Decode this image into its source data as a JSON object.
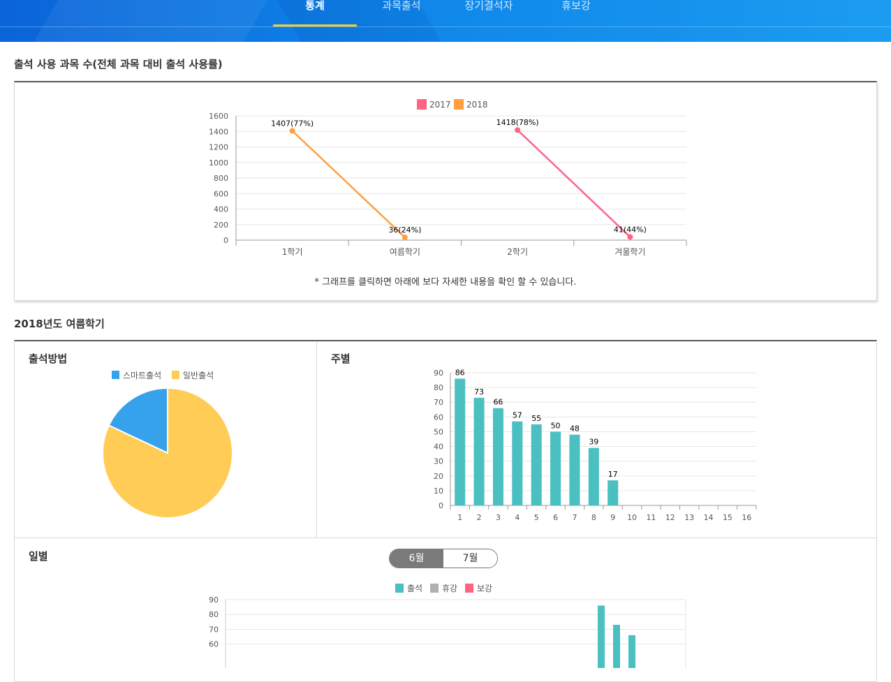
{
  "nav": {
    "tabs": [
      {
        "label": "통계",
        "active": true
      },
      {
        "label": "과목출석",
        "active": false
      },
      {
        "label": "장기결석자",
        "active": false
      },
      {
        "label": "휴보강",
        "active": false
      }
    ]
  },
  "usage": {
    "title": "출석 사용 과목 수(전체 과목 대비 출석 사용률)",
    "note": "* 그래프를 클릭하면 아래에 보다 자세한 내용을 확인 할 수 있습니다."
  },
  "summer": {
    "title": "2018년도 여름학기",
    "method_title": "출석방법",
    "weekly_title": "주별",
    "daily_title": "일별",
    "month_toggle": [
      "6월",
      "7월"
    ],
    "month_selected": "6월"
  },
  "colors": {
    "2017": "#ff6384",
    "2018": "#ff9f40",
    "smart": "#36a2eb",
    "normal": "#ffcd56",
    "attend": "#4bc0c0",
    "cancel": "#b0b0b0",
    "makeup": "#ff6384"
  },
  "chart_data": [
    {
      "type": "line",
      "categories": [
        "1학기",
        "여름학기",
        "2학기",
        "겨울학기"
      ],
      "series": [
        {
          "name": "2017",
          "color": "#ff6384",
          "points": [
            {
              "x": "2학기",
              "y": 1418,
              "label": "1418(78%)"
            },
            {
              "x": "겨울학기",
              "y": 41,
              "label": "41(44%)"
            }
          ]
        },
        {
          "name": "2018",
          "color": "#ff9f40",
          "points": [
            {
              "x": "1학기",
              "y": 1407,
              "label": "1407(77%)"
            },
            {
              "x": "여름학기",
              "y": 36,
              "label": "36(24%)"
            }
          ]
        }
      ],
      "ylim": [
        0,
        1600
      ],
      "yticks": [
        0,
        200,
        400,
        600,
        800,
        1000,
        1200,
        1400,
        1600
      ],
      "legend": "top",
      "grid": true
    },
    {
      "type": "pie",
      "labels": [
        "스마트출석",
        "일반출석"
      ],
      "values": [
        18,
        82
      ],
      "colors": [
        "#36a2eb",
        "#ffcd56"
      ],
      "legend": "top"
    },
    {
      "type": "bar",
      "categories": [
        "1",
        "2",
        "3",
        "4",
        "5",
        "6",
        "7",
        "8",
        "9",
        "10",
        "11",
        "12",
        "13",
        "14",
        "15",
        "16"
      ],
      "values": [
        86,
        73,
        66,
        57,
        55,
        50,
        48,
        39,
        17,
        null,
        null,
        null,
        null,
        null,
        null,
        null
      ],
      "ylim": [
        0,
        90
      ],
      "yticks": [
        0,
        10,
        20,
        30,
        40,
        50,
        60,
        70,
        80,
        90
      ],
      "color": "#4bc0c0",
      "grid": true
    },
    {
      "type": "bar",
      "series": [
        {
          "name": "출석",
          "color": "#4bc0c0"
        },
        {
          "name": "휴강",
          "color": "#b0b0b0"
        },
        {
          "name": "보강",
          "color": "#ff6384"
        }
      ],
      "visible_bars": [
        {
          "series": "출석",
          "value": 86
        },
        {
          "series": "출석",
          "value": 73
        },
        {
          "series": "출석",
          "value": 66
        }
      ],
      "ylim": [
        0,
        90
      ],
      "yticks_visible": [
        60,
        70,
        80,
        90
      ],
      "legend": "top"
    }
  ]
}
